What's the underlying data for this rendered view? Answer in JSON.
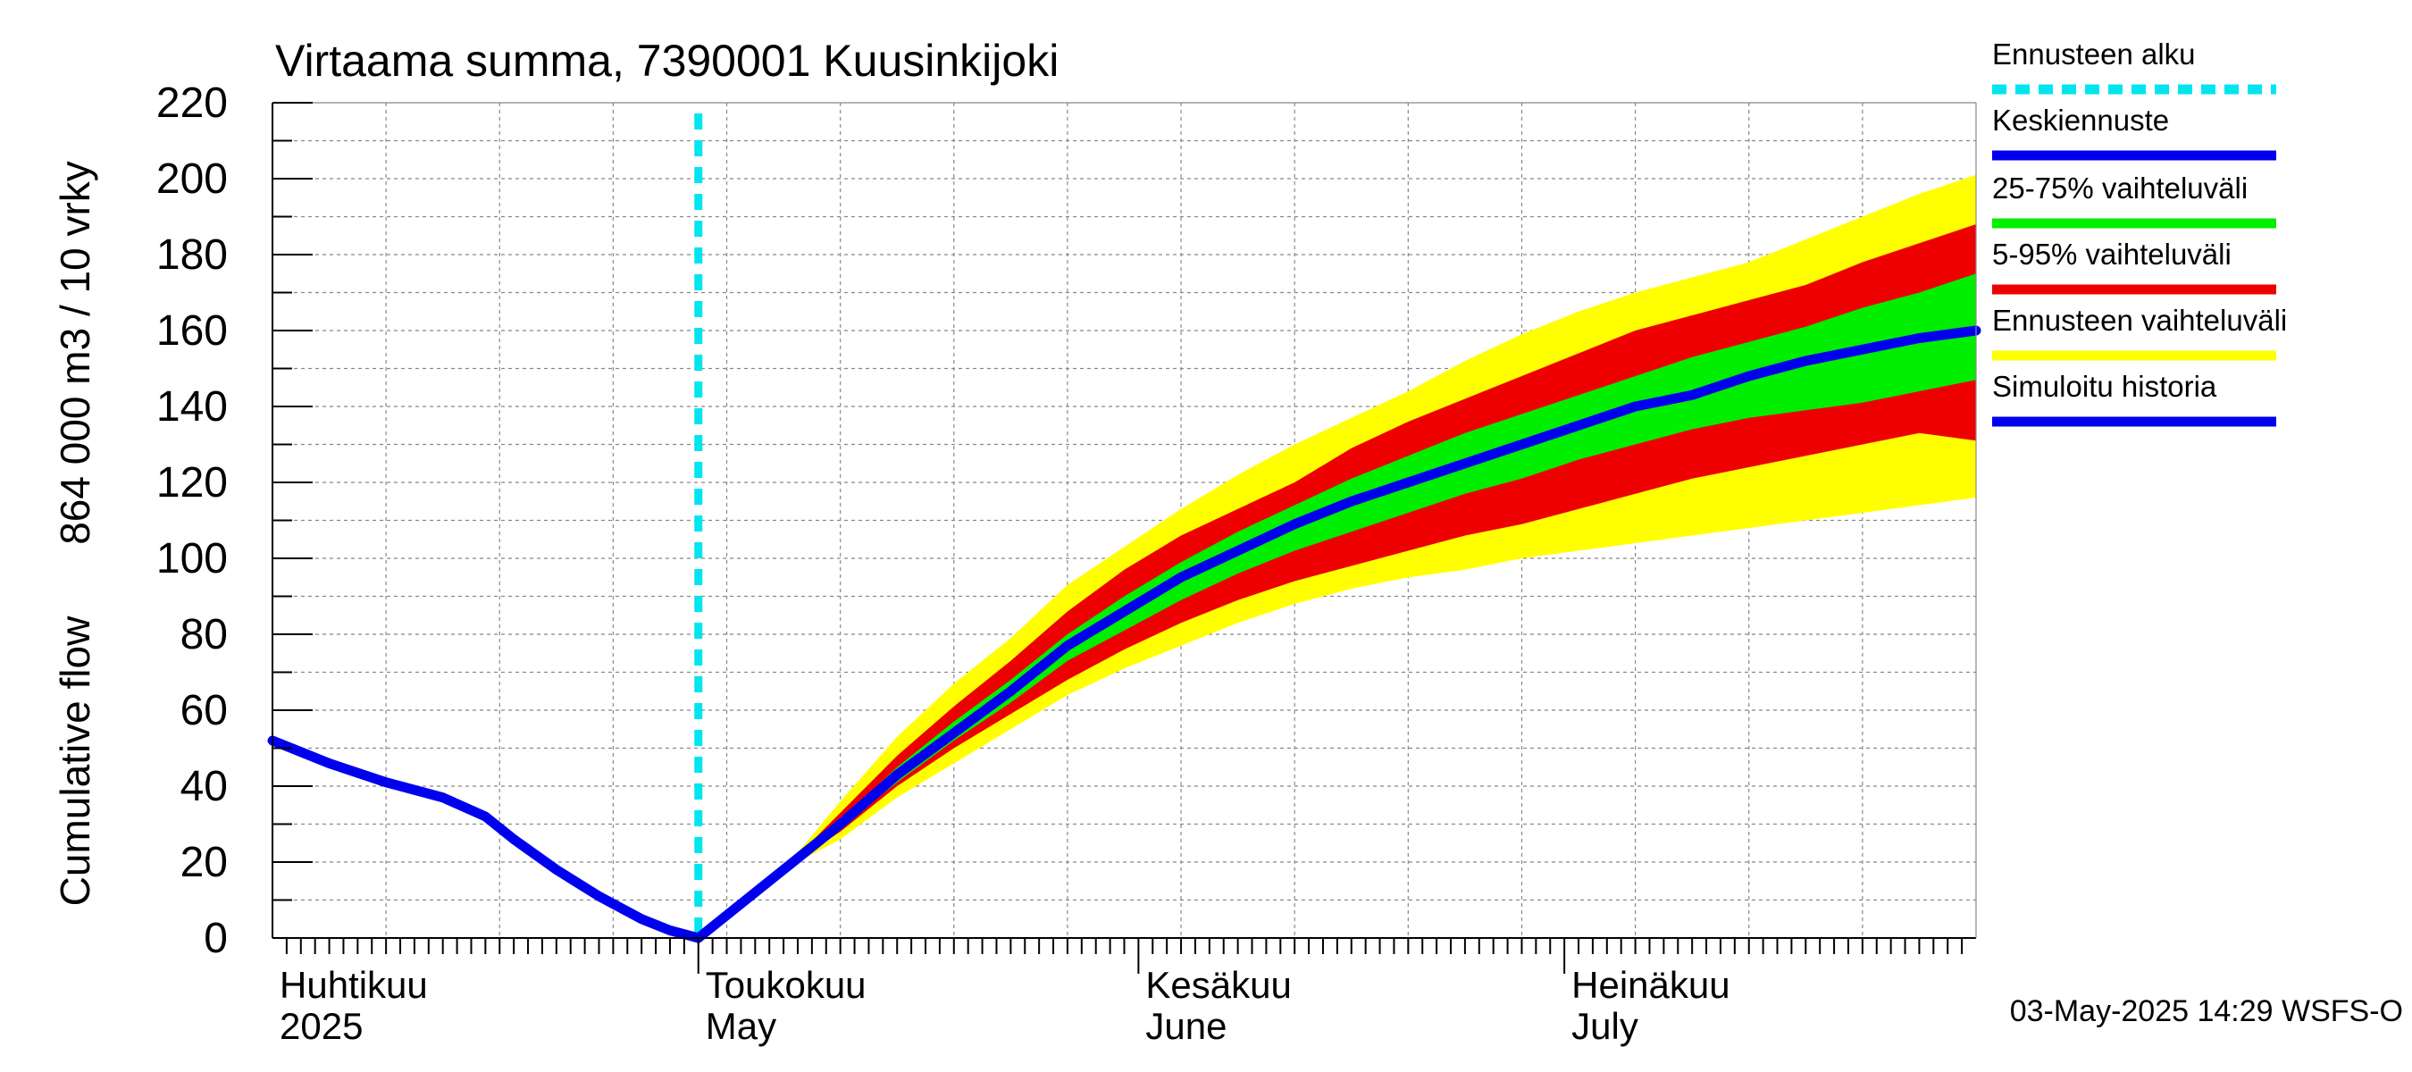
{
  "chart_data": {
    "type": "area",
    "title": "Virtaama summa, 7390001 Kuusinkijoki",
    "ylabel_lines": [
      "Cumulative flow",
      "864 000 m3 / 10 vrky"
    ],
    "ylim": [
      0,
      220
    ],
    "yticks": [
      0,
      20,
      40,
      60,
      80,
      100,
      120,
      140,
      160,
      180,
      200,
      220
    ],
    "xlim_days": [
      0,
      120
    ],
    "month_labels": [
      {
        "day": 0,
        "line1": "Huhtikuu",
        "line2": "2025"
      },
      {
        "day": 30,
        "line1": "Toukokuu",
        "line2": "May"
      },
      {
        "day": 61,
        "line1": "Kesäkuu",
        "line2": "June"
      },
      {
        "day": 91,
        "line1": "Heinäkuu",
        "line2": "July"
      }
    ],
    "forecast_start_day": 30,
    "series": [
      {
        "name": "Simuloitu historia",
        "x": [
          0,
          4,
          8,
          12,
          15,
          17,
          20,
          23,
          26,
          28,
          30
        ],
        "values": [
          52,
          46,
          41,
          37,
          32,
          26,
          18,
          11,
          5,
          2,
          0
        ]
      },
      {
        "name": "Keskiennuste",
        "x": [
          30,
          33,
          36,
          40,
          44,
          48,
          52,
          56,
          60,
          64,
          68,
          72,
          76,
          80,
          84,
          88,
          92,
          96,
          100,
          104,
          108,
          112,
          116,
          120
        ],
        "values": [
          0,
          9,
          18,
          30,
          43,
          54,
          65,
          77,
          86,
          95,
          102,
          109,
          115,
          120,
          125,
          130,
          135,
          140,
          143,
          148,
          152,
          155,
          158,
          160
        ]
      }
    ],
    "bands": [
      {
        "name": "Ennusteen vaihteluväli",
        "x": [
          30,
          33,
          36,
          40,
          44,
          48,
          52,
          56,
          60,
          64,
          68,
          72,
          76,
          80,
          84,
          88,
          92,
          96,
          100,
          104,
          108,
          112,
          116,
          120
        ],
        "lower": [
          0,
          9,
          18,
          26,
          37,
          46,
          55,
          64,
          71,
          77,
          83,
          88,
          92,
          95,
          97,
          100,
          102,
          104,
          106,
          108,
          110,
          112,
          114,
          116
        ],
        "upper": [
          0,
          9,
          18,
          36,
          53,
          67,
          79,
          93,
          103,
          113,
          122,
          130,
          137,
          144,
          152,
          159,
          165,
          170,
          174,
          178,
          184,
          190,
          196,
          201
        ]
      },
      {
        "name": "5-95% vaihteluväli",
        "x": [
          30,
          33,
          36,
          40,
          44,
          48,
          52,
          56,
          60,
          64,
          68,
          72,
          76,
          80,
          84,
          88,
          92,
          96,
          100,
          104,
          108,
          112,
          116,
          120
        ],
        "lower": [
          0,
          9,
          18,
          28,
          40,
          50,
          59,
          68,
          76,
          83,
          89,
          94,
          98,
          102,
          106,
          109,
          113,
          117,
          121,
          124,
          127,
          130,
          133,
          131
        ],
        "upper": [
          0,
          9,
          18,
          33,
          48,
          61,
          73,
          86,
          97,
          106,
          113,
          120,
          129,
          136,
          142,
          148,
          154,
          160,
          164,
          168,
          172,
          178,
          183,
          188
        ]
      },
      {
        "name": "25-75% vaihteluväli",
        "x": [
          30,
          33,
          36,
          40,
          44,
          48,
          52,
          56,
          60,
          64,
          68,
          72,
          76,
          80,
          84,
          88,
          92,
          96,
          100,
          104,
          108,
          112,
          116,
          120
        ],
        "lower": [
          0,
          9,
          18,
          29,
          41,
          52,
          62,
          73,
          81,
          89,
          96,
          102,
          107,
          112,
          117,
          121,
          126,
          130,
          134,
          137,
          139,
          141,
          144,
          147
        ],
        "upper": [
          0,
          9,
          18,
          31,
          45,
          57,
          68,
          80,
          90,
          99,
          107,
          114,
          121,
          127,
          133,
          138,
          143,
          148,
          153,
          157,
          161,
          166,
          170,
          175
        ]
      }
    ],
    "legend": [
      {
        "label": "Ennusteen alku",
        "color": "#00e5ee",
        "style": "dashed"
      },
      {
        "label": "Keskiennuste",
        "color": "#0000ee",
        "style": "solid"
      },
      {
        "label": "25-75% vaihteluväli",
        "color": "#00ee00",
        "style": "solid"
      },
      {
        "label": "5-95% vaihteluväli",
        "color": "#ee0000",
        "style": "solid"
      },
      {
        "label": "Ennusteen vaihteluväli",
        "color": "#ffff00",
        "style": "solid"
      },
      {
        "label": "Simuloitu historia",
        "color": "#0000ee",
        "style": "solid"
      }
    ],
    "legend_position": "right",
    "grid": true,
    "footer": "03-May-2025 14:29 WSFS-O",
    "colors": {
      "band_outer": "#ffff00",
      "band_mid": "#ee0000",
      "band_inner": "#00ee00",
      "median": "#0000ee",
      "history": "#0000ee",
      "forecast_start": "#00e5ee",
      "grid": "#888888"
    }
  }
}
